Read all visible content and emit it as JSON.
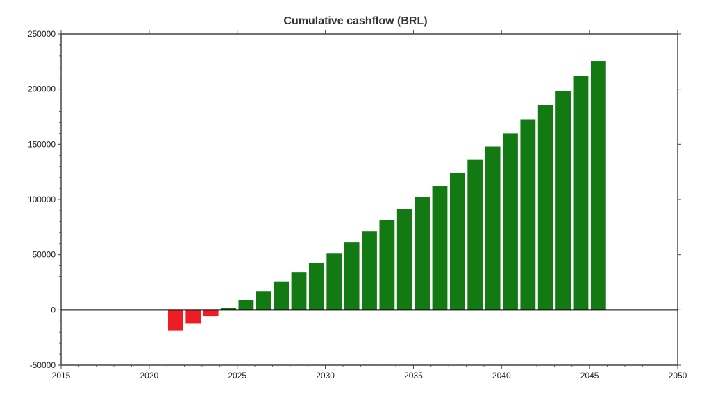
{
  "chart_data": {
    "type": "bar",
    "title": "Cumulative cashflow (BRL)",
    "xlabel": "",
    "ylabel": "",
    "xlim": [
      2015,
      2050
    ],
    "ylim": [
      -50000,
      250000
    ],
    "x_ticks": [
      "2015",
      "2020",
      "2025",
      "2030",
      "2035",
      "2040",
      "2045",
      "2050"
    ],
    "y_ticks": [
      "250000",
      "200000",
      "150000",
      "100000",
      "50000",
      "0",
      "-50000"
    ],
    "grid": false,
    "legend": "none",
    "colors": {
      "positive": "#137a13",
      "negative": "#ee1c25",
      "zero_line": "#000000"
    },
    "x": [
      2021,
      2022,
      2023,
      2024,
      2025,
      2026,
      2027,
      2028,
      2029,
      2030,
      2031,
      2032,
      2033,
      2034,
      2035,
      2036,
      2037,
      2038,
      2039,
      2040,
      2041,
      2042,
      2043,
      2044,
      2045
    ],
    "values": [
      -19000,
      -12000,
      -5500,
      1500,
      9000,
      17000,
      25500,
      34000,
      42500,
      51500,
      61000,
      71000,
      81500,
      91500,
      102500,
      112500,
      124500,
      136000,
      148000,
      160000,
      172500,
      185500,
      198500,
      212000,
      225500
    ]
  }
}
